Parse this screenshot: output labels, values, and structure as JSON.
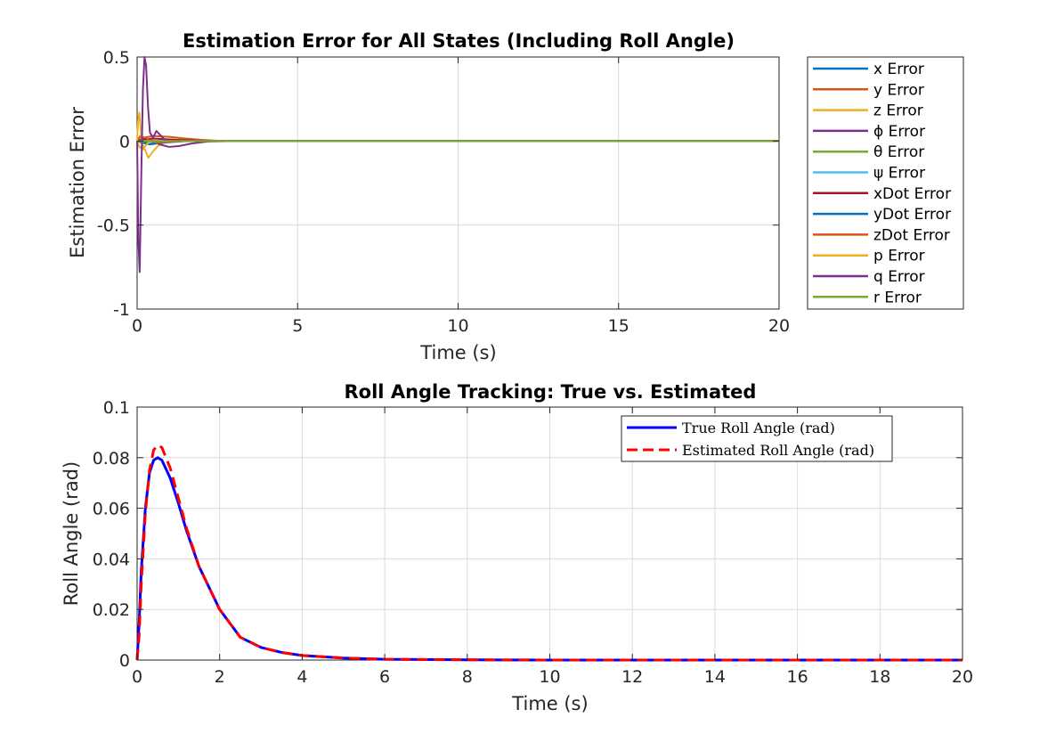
{
  "chart_data": [
    {
      "type": "line",
      "title": "Estimation Error for All States (Including Roll Angle)",
      "xlabel": "Time (s)",
      "ylabel": "Estimation Error",
      "xlim": [
        0,
        20
      ],
      "ylim": [
        -1,
        0.5
      ],
      "xticks": [
        "0",
        "5",
        "10",
        "15",
        "20"
      ],
      "yticks": [
        "-1",
        "-0.5",
        "0",
        "0.5"
      ],
      "grid": true,
      "legend_position": "outside-right",
      "series": [
        {
          "name": "x Error",
          "color": "#0072BD",
          "x": [
            0,
            0.1,
            0.3,
            0.6,
            1.0,
            2.0,
            3.0,
            20
          ],
          "y": [
            0,
            -0.005,
            -0.01,
            -0.005,
            -0.002,
            0,
            0,
            0
          ]
        },
        {
          "name": "y Error",
          "color": "#D95319",
          "x": [
            0,
            0.2,
            0.5,
            1.0,
            1.5,
            2.0,
            2.5,
            3.0,
            20
          ],
          "y": [
            0,
            0.02,
            0.03,
            0.025,
            0.015,
            0.007,
            0.002,
            0,
            0
          ]
        },
        {
          "name": "z Error",
          "color": "#EDB120",
          "x": [
            0,
            0.08,
            0.2,
            0.35,
            0.5,
            0.7,
            1.0,
            1.5,
            20
          ],
          "y": [
            0,
            -0.04,
            -0.03,
            -0.1,
            -0.06,
            -0.02,
            0.0,
            0,
            0
          ]
        },
        {
          "name": "ϕ Error",
          "color": "#7E2F8E",
          "x": [
            0,
            0.3,
            0.5,
            0.7,
            1.0,
            1.3,
            1.7,
            2.2,
            3.0,
            20
          ],
          "y": [
            0,
            0.01,
            0.0,
            -0.02,
            -0.035,
            -0.03,
            -0.015,
            -0.003,
            0,
            0
          ]
        },
        {
          "name": "θ Error",
          "color": "#77AC30",
          "x": [
            0,
            0.2,
            0.5,
            1.0,
            20
          ],
          "y": [
            0,
            0.003,
            0.0,
            0.0,
            0.0
          ]
        },
        {
          "name": "ψ Error",
          "color": "#4DBEEE",
          "x": [
            0,
            0.3,
            0.6,
            1.0,
            20
          ],
          "y": [
            0,
            0.005,
            0.002,
            0.0,
            0.0
          ]
        },
        {
          "name": "xDot Error",
          "color": "#A2142F",
          "x": [
            0,
            0.2,
            0.5,
            1.0,
            1.5,
            2.0,
            2.5,
            20
          ],
          "y": [
            0,
            0.01,
            0.015,
            0.01,
            0.005,
            0.002,
            0,
            0
          ]
        },
        {
          "name": "yDot Error",
          "color": "#0072BD",
          "x": [
            0,
            0.15,
            0.4,
            0.8,
            1.5,
            20
          ],
          "y": [
            0,
            -0.01,
            -0.02,
            -0.01,
            0,
            0
          ]
        },
        {
          "name": "zDot Error",
          "color": "#D95319",
          "x": [
            0,
            0.1,
            0.3,
            0.6,
            1.0,
            1.5,
            20
          ],
          "y": [
            0,
            0.03,
            0.015,
            -0.01,
            -0.005,
            0,
            0
          ]
        },
        {
          "name": "p Error",
          "color": "#EDB120",
          "x": [
            0,
            0.03,
            0.07,
            0.12,
            0.18,
            0.25,
            0.35,
            0.5,
            0.7,
            1.0,
            20
          ],
          "y": [
            0,
            0.12,
            0.17,
            0.05,
            -0.05,
            -0.03,
            -0.01,
            0.0,
            0.0,
            0,
            0
          ]
        },
        {
          "name": "q Error",
          "color": "#7E2F8E",
          "x": [
            0,
            0.04,
            0.08,
            0.13,
            0.18,
            0.23,
            0.28,
            0.34,
            0.4,
            0.5,
            0.6,
            0.7,
            0.85,
            1.0,
            1.3,
            20
          ],
          "y": [
            0,
            -0.6,
            -0.78,
            -0.2,
            0.3,
            0.5,
            0.45,
            0.2,
            0.05,
            0.02,
            0.06,
            0.04,
            0.01,
            0.0,
            0,
            0
          ]
        },
        {
          "name": "r Error",
          "color": "#77AC30",
          "x": [
            0,
            20
          ],
          "y": [
            0,
            0
          ]
        }
      ]
    },
    {
      "type": "line",
      "title": "Roll Angle Tracking: True vs. Estimated",
      "xlabel": "Time (s)",
      "ylabel": "Roll Angle (rad)",
      "xlim": [
        0,
        20
      ],
      "ylim": [
        0,
        0.1
      ],
      "xticks": [
        "0",
        "2",
        "4",
        "6",
        "8",
        "10",
        "12",
        "14",
        "16",
        "18",
        "20"
      ],
      "yticks": [
        "0",
        "0.02",
        "0.04",
        "0.06",
        "0.08",
        "0.1"
      ],
      "grid": true,
      "legend_position": "top-right",
      "series": [
        {
          "name": "True Roll Angle (rad)",
          "color": "#0000FF",
          "style": "solid",
          "x": [
            0,
            0.05,
            0.1,
            0.2,
            0.3,
            0.4,
            0.5,
            0.6,
            0.8,
            1.0,
            1.2,
            1.5,
            2.0,
            2.5,
            3.0,
            3.5,
            4.0,
            5.0,
            6.0,
            8.0,
            10.0,
            20.0
          ],
          "y": [
            0,
            0.015,
            0.035,
            0.06,
            0.074,
            0.079,
            0.08,
            0.079,
            0.072,
            0.062,
            0.051,
            0.037,
            0.02,
            0.009,
            0.005,
            0.003,
            0.0018,
            0.0008,
            0.0003,
            0.0001,
            0.0,
            0.0
          ]
        },
        {
          "name": "Estimated Roll Angle (rad)",
          "color": "#FF0000",
          "style": "dashed",
          "x": [
            0,
            0.05,
            0.1,
            0.2,
            0.3,
            0.4,
            0.5,
            0.6,
            0.8,
            1.0,
            1.2,
            1.5,
            2.0,
            2.5,
            3.0,
            3.5,
            4.0,
            5.0,
            6.0,
            8.0,
            10.0,
            20.0
          ],
          "y": [
            0,
            0.01,
            0.03,
            0.058,
            0.075,
            0.083,
            0.085,
            0.084,
            0.076,
            0.064,
            0.052,
            0.037,
            0.02,
            0.009,
            0.005,
            0.003,
            0.0018,
            0.0008,
            0.0003,
            0.0001,
            0.0,
            0.0
          ]
        }
      ]
    }
  ]
}
